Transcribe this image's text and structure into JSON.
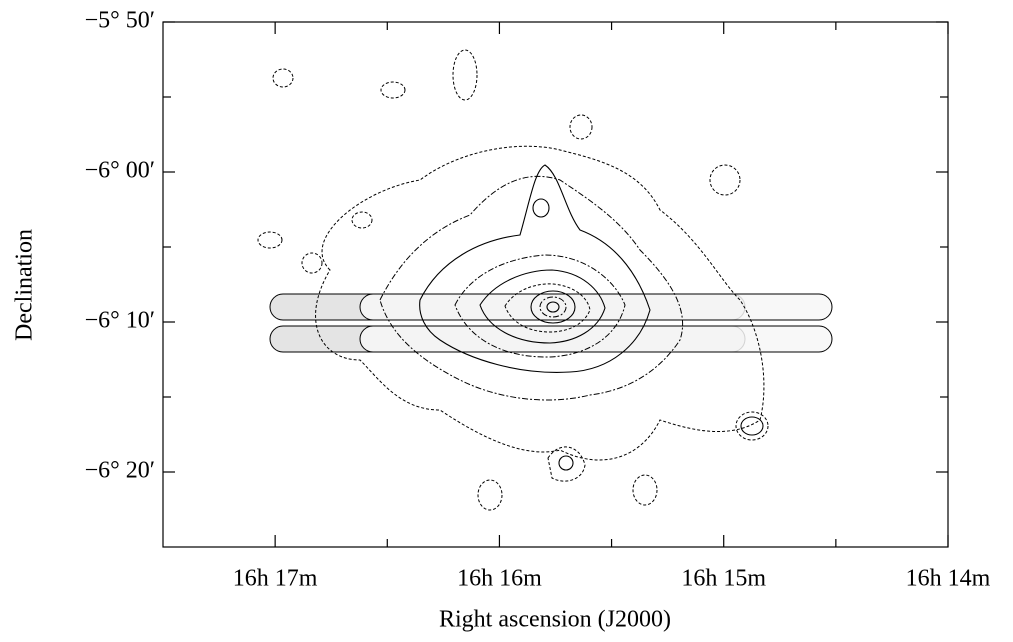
{
  "chart_data": {
    "type": "contour",
    "xlabel": "Right  ascension (J2000)",
    "ylabel": "Declination",
    "xlim": [
      17.5,
      14.0
    ],
    "xticks": [
      {
        "value": 17,
        "label": "16h 17m"
      },
      {
        "value": 16,
        "label": "16h 16m"
      },
      {
        "value": 15,
        "label": "16h 15m"
      },
      {
        "value": 14,
        "label": "16h 14m"
      }
    ],
    "xminorticks": [
      16.5,
      15.5,
      14.5
    ],
    "ylim": [
      -385,
      -350
    ],
    "yticks": [
      {
        "value": -350,
        "label": "−5° 50′"
      },
      {
        "value": -360,
        "label": "−6° 00′"
      },
      {
        "value": -370,
        "label": "−6° 10′"
      },
      {
        "value": -380,
        "label": "−6° 20′"
      }
    ],
    "yminorticks": [
      -355,
      -365,
      -375
    ]
  }
}
